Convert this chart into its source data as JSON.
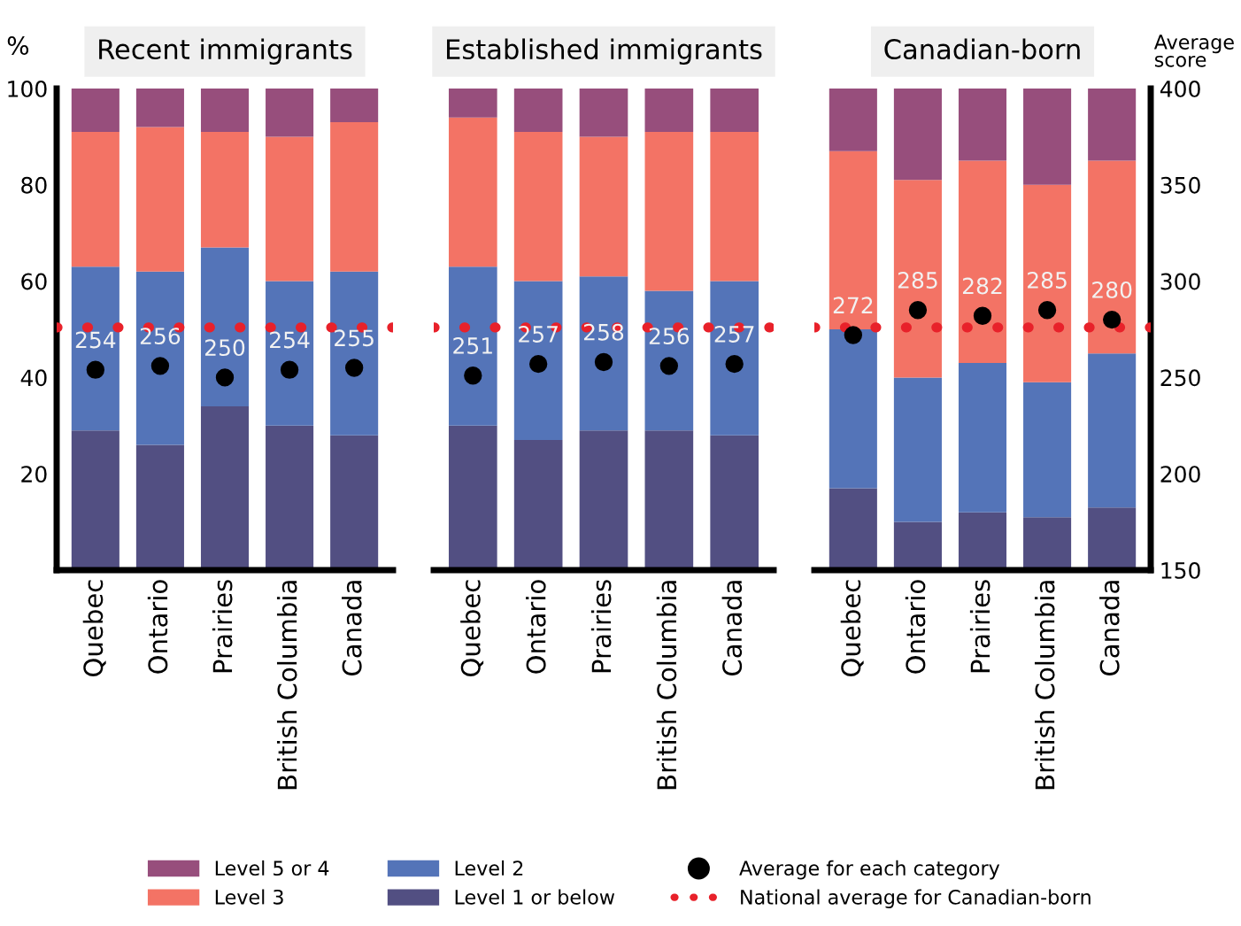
{
  "chart_data": [
    {
      "type": "bar",
      "stacked": true,
      "title": "Recent immigrants",
      "ylabel": "%",
      "categories": [
        "Quebec",
        "Ontario",
        "Prairies",
        "British Columbia",
        "Canada"
      ],
      "ylim": [
        0,
        100
      ],
      "yticks": [
        20,
        40,
        60,
        80,
        100
      ],
      "y2lim": [
        150,
        400
      ],
      "legend": "bottom",
      "series": [
        {
          "name": "Level 1 or below",
          "color": "#524f82",
          "values": [
            29,
            26,
            34,
            30,
            28
          ]
        },
        {
          "name": "Level 2",
          "color": "#5474b8",
          "values": [
            34,
            36,
            33,
            30,
            34
          ]
        },
        {
          "name": "Level 3",
          "color": "#f37365",
          "values": [
            28,
            30,
            24,
            30,
            31
          ]
        },
        {
          "name": "Level 5 or 4",
          "color": "#974e7c",
          "values": [
            9,
            8,
            9,
            10,
            7
          ]
        },
        {
          "type": "scatter",
          "name": "Average for each category",
          "color": "#000000",
          "axis": "y2",
          "values": [
            254,
            256,
            250,
            254,
            255
          ],
          "value_labels": [
            "254",
            "256",
            "250",
            "254",
            "255"
          ]
        }
      ],
      "ref_lines": [
        {
          "axis": "y2",
          "value": 276,
          "label": "National average for Canadian-born",
          "color": "#e8212a",
          "line_style": "dotted"
        }
      ]
    },
    {
      "type": "bar",
      "stacked": true,
      "title": "Established immigrants",
      "categories": [
        "Quebec",
        "Ontario",
        "Prairies",
        "British Columbia",
        "Canada"
      ],
      "ylim": [
        0,
        100
      ],
      "y2lim": [
        150,
        400
      ],
      "tick_labels": "x",
      "series": [
        {
          "color": "#524f82",
          "values": [
            30,
            27,
            29,
            29,
            28
          ]
        },
        {
          "color": "#5474b8",
          "values": [
            33,
            33,
            32,
            29,
            32
          ]
        },
        {
          "color": "#f37365",
          "values": [
            31,
            31,
            29,
            33,
            31
          ]
        },
        {
          "color": "#974e7c",
          "values": [
            6,
            9,
            10,
            9,
            9
          ]
        },
        {
          "type": "scatter",
          "color": "#000000",
          "axis": "y2",
          "values": [
            251,
            257,
            258,
            256,
            257
          ],
          "value_labels": [
            "251",
            "257",
            "258",
            "256",
            "257"
          ]
        }
      ],
      "ref_lines": [
        {
          "axis": "y2",
          "value": 276,
          "color": "#e8212a",
          "line_style": "dotted"
        }
      ]
    },
    {
      "type": "bar",
      "stacked": true,
      "title": "Canadian-born",
      "y2label": "Average score",
      "categories": [
        "Quebec",
        "Ontario",
        "Prairies",
        "British Columbia",
        "Canada"
      ],
      "ylim": [
        0,
        100
      ],
      "y2lim": [
        150,
        400
      ],
      "y2ticks": [
        150,
        200,
        250,
        300,
        350,
        400
      ],
      "series": [
        {
          "color": "#524f82",
          "values": [
            17,
            10,
            12,
            11,
            13
          ]
        },
        {
          "color": "#5474b8",
          "values": [
            33,
            30,
            31,
            28,
            32
          ]
        },
        {
          "color": "#f37365",
          "values": [
            37,
            41,
            42,
            41,
            40
          ]
        },
        {
          "color": "#974e7c",
          "values": [
            13,
            19,
            15,
            20,
            15
          ]
        },
        {
          "type": "scatter",
          "color": "#000000",
          "axis": "y2",
          "values": [
            272,
            285,
            282,
            285,
            280
          ],
          "value_labels": [
            "272",
            "285",
            "282",
            "285",
            "280"
          ]
        }
      ],
      "ref_lines": [
        {
          "axis": "y2",
          "value": 276,
          "color": "#e8212a",
          "line_style": "dotted"
        }
      ]
    }
  ]
}
